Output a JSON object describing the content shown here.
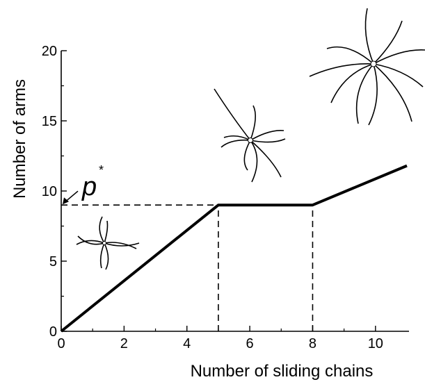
{
  "chart_data": {
    "type": "line",
    "x_label": "Number of sliding chains",
    "y_label": "Number of arms",
    "x": [
      0,
      5,
      8,
      11
    ],
    "series": [
      {
        "color": "#000000",
        "values": [
          0,
          9,
          9,
          11.8
        ]
      }
    ],
    "xlim": [
      0,
      11
    ],
    "ylim": [
      0,
      20
    ],
    "xticks": [
      0,
      2,
      4,
      6,
      8,
      10
    ],
    "yticks": [
      0,
      5,
      10,
      15,
      20
    ],
    "reference_lines": [
      {
        "axis": "y",
        "value": 9
      },
      {
        "axis": "x",
        "value": 5
      },
      {
        "axis": "x",
        "value": 8
      }
    ],
    "annotation": {
      "text": "p",
      "superscript": "*"
    },
    "grid": false
  }
}
